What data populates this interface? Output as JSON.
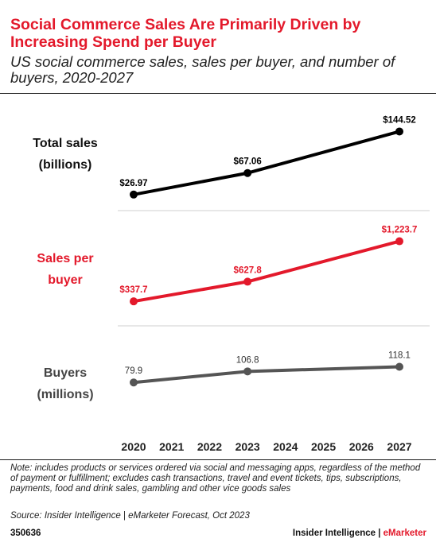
{
  "header": {
    "title": "Social Commerce Sales Are Primarily Driven by Increasing Spend per Buyer",
    "subtitle": "US social commerce sales, sales per buyer, and number of buyers, 2020-2027"
  },
  "chart_data": {
    "type": "line",
    "x": [
      "2020",
      "2021",
      "2022",
      "2023",
      "2024",
      "2025",
      "2026",
      "2027"
    ],
    "grid": false,
    "legend": "none",
    "panels": [
      {
        "name_lines": [
          "Total sales",
          "(billions)"
        ],
        "color": "#000000",
        "points": [
          {
            "x": "2020",
            "value": 26.97,
            "label": "$26.97"
          },
          {
            "x": "2023",
            "value": 67.06,
            "label": "$67.06"
          },
          {
            "x": "2027",
            "value": 144.52,
            "label": "$144.52"
          }
        ]
      },
      {
        "name_lines": [
          "Sales per",
          "buyer"
        ],
        "color": "#e3192b",
        "points": [
          {
            "x": "2020",
            "value": 337.7,
            "label": "$337.7"
          },
          {
            "x": "2023",
            "value": 627.8,
            "label": "$627.8"
          },
          {
            "x": "2027",
            "value": 1223.7,
            "label": "$1,223.7"
          }
        ]
      },
      {
        "name_lines": [
          "Buyers",
          "(millions)"
        ],
        "color": "#555555",
        "points": [
          {
            "x": "2020",
            "value": 79.9,
            "label": "79.9"
          },
          {
            "x": "2023",
            "value": 106.8,
            "label": "106.8"
          },
          {
            "x": "2027",
            "value": 118.1,
            "label": "118.1"
          }
        ]
      }
    ]
  },
  "footer": {
    "note": "Note: includes products or services ordered via social and messaging apps, regardless of the method of payment or fulfillment; excludes cash transactions, travel and event tickets, tips, subscriptions, payments, food and drink sales, gambling and other vice goods sales",
    "source": "Source: Insider Intelligence | eMarketer Forecast, Oct 2023",
    "chart_id": "350636",
    "brand_main": "Insider Intelligence",
    "brand_sep": " | ",
    "brand_accent": "eMarketer"
  }
}
